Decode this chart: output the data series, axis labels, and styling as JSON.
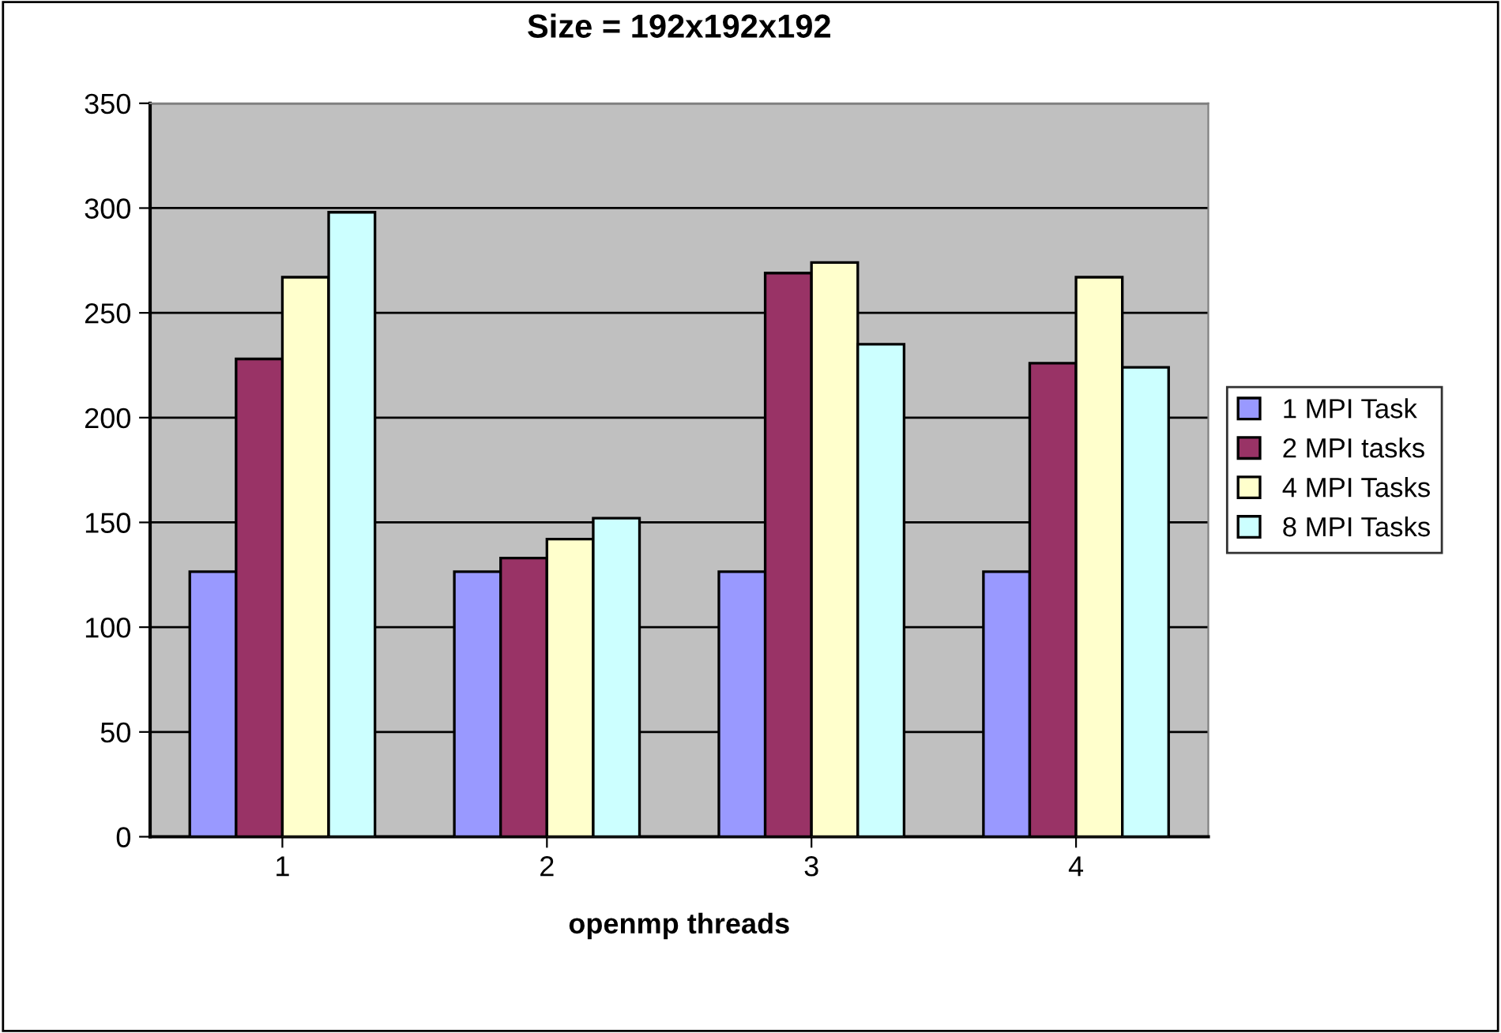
{
  "chart_data": {
    "type": "bar",
    "title": "Size = 192x192x192",
    "xlabel": "openmp threads",
    "categories": [
      "1",
      "2",
      "3",
      "4"
    ],
    "series": [
      {
        "name": "1 MPI Task",
        "color": "#9999ff",
        "values": [
          126.5,
          126.5,
          126.5,
          126.5
        ]
      },
      {
        "name": "2 MPI tasks",
        "color": "#993366",
        "values": [
          228,
          133,
          269,
          226
        ]
      },
      {
        "name": "4 MPI Tasks",
        "color": "#ffffcc",
        "values": [
          267,
          142,
          274,
          267
        ]
      },
      {
        "name": "8 MPI Tasks",
        "color": "#ccffff",
        "values": [
          298,
          152,
          235,
          224
        ]
      }
    ],
    "ylim": [
      0,
      350
    ],
    "yticks": [
      0,
      50,
      100,
      150,
      200,
      250,
      300,
      350
    ],
    "grid": "y",
    "legend": "right"
  }
}
